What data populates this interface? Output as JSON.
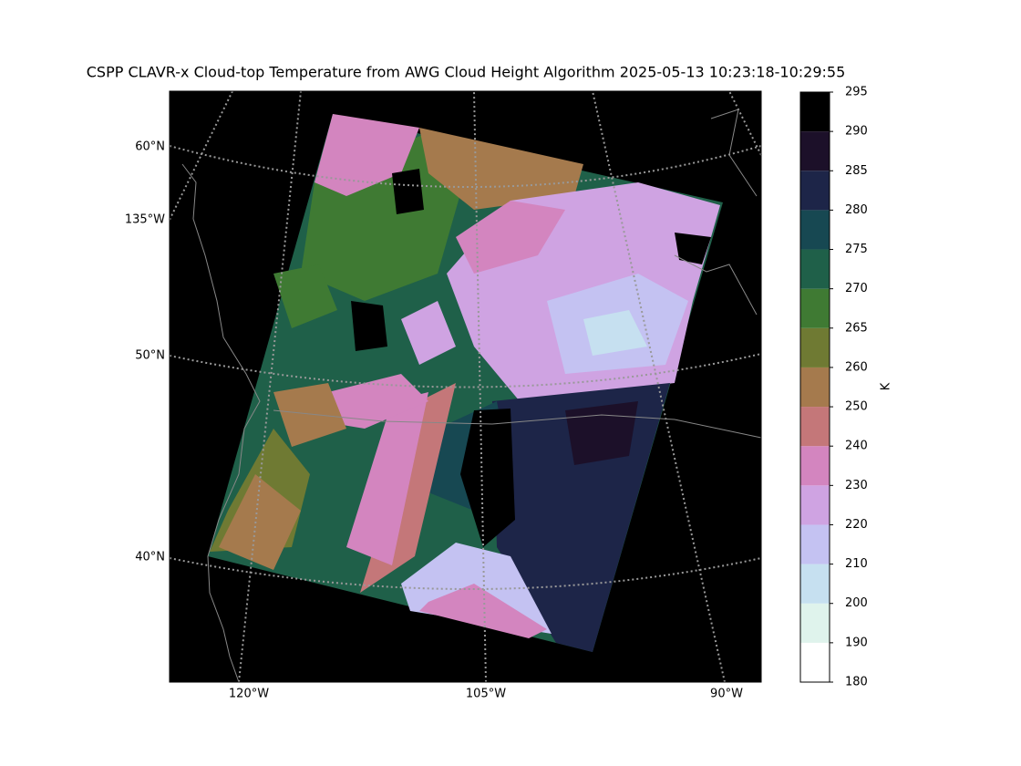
{
  "title": "CSPP CLAVR-x Cloud-top Temperature from AWG Cloud Height Algorithm 2025-05-13 10:23:18-10:29:55",
  "map": {
    "lat_labels": [
      "60°N",
      "50°N",
      "40°N"
    ],
    "lon_labels": [
      "135°W",
      "120°W",
      "105°W",
      "90°W"
    ]
  },
  "colorbar": {
    "label": "K",
    "boundaries": [
      180,
      190,
      200,
      210,
      220,
      230,
      240,
      250,
      260,
      265,
      270,
      275,
      280,
      285,
      290,
      295
    ],
    "colors": [
      "#ffffff",
      "#dff3ec",
      "#c6e0f0",
      "#c4c2f2",
      "#cfa3e2",
      "#d385bf",
      "#c47779",
      "#a57a4d",
      "#6f7a33",
      "#3f7a33",
      "#1f6049",
      "#174852",
      "#1d2548",
      "#1c1029",
      "#000000"
    ]
  }
}
